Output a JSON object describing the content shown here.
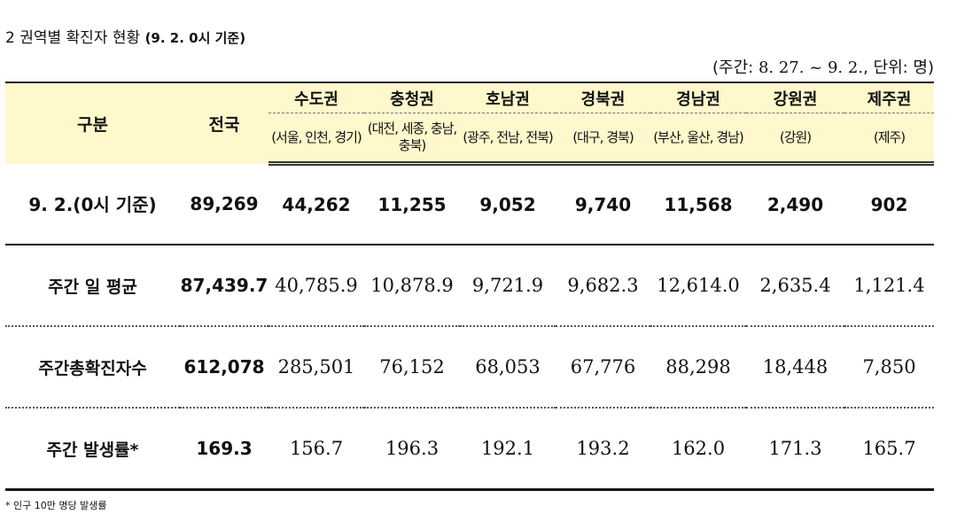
{
  "title": {
    "main": "2  권역별 확진자 현황 ",
    "note": "(9. 2. 0시 기준)"
  },
  "period": {
    "prefix": "(주간: ",
    "range": "8. 27. ~ 9. 2.",
    "suffix": ", 단위: 명)"
  },
  "table": {
    "header": {
      "category": "구분",
      "nation": "전국",
      "regions": [
        {
          "name": "수도권",
          "sub": "(서울, 인천, 경기)"
        },
        {
          "name": "충청권",
          "sub": "(대전, 세종, 충남, 충북)"
        },
        {
          "name": "호남권",
          "sub": "(광주, 전남, 전북)"
        },
        {
          "name": "경북권",
          "sub": "(대구, 경북)"
        },
        {
          "name": "경남권",
          "sub": "(부산, 울산, 경남)"
        },
        {
          "name": "강원권",
          "sub": "(강원)"
        },
        {
          "name": "제주권",
          "sub": "(제주)"
        }
      ]
    },
    "rows": [
      {
        "label": "9. 2.(0시 기준)",
        "nation": "89,269",
        "values": [
          "44,262",
          "11,255",
          "9,052",
          "9,740",
          "11,568",
          "2,490",
          "902"
        ]
      },
      {
        "label": "주간 일 평균",
        "nation": "87,439.7",
        "values": [
          "40,785.9",
          "10,878.9",
          "9,721.9",
          "9,682.3",
          "12,614.0",
          "2,635.4",
          "1,121.4"
        ]
      },
      {
        "label": "주간총확진자수",
        "nation": "612,078",
        "values": [
          "285,501",
          "76,152",
          "68,053",
          "67,776",
          "88,298",
          "18,448",
          "7,850"
        ]
      },
      {
        "label": "주간 발생률*",
        "nation": "169.3",
        "values": [
          "156.7",
          "196.3",
          "192.1",
          "193.2",
          "162.0",
          "171.3",
          "165.7"
        ]
      }
    ]
  },
  "footnote": "* 인구 10만 명당 발생률"
}
